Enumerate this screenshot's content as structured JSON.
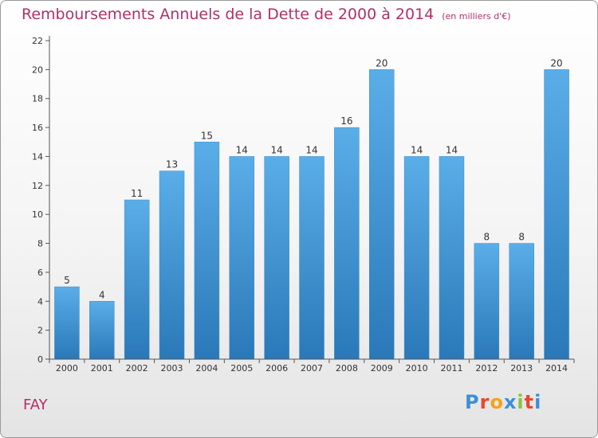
{
  "header": {
    "title": "Remboursements Annuels de la Dette de 2000 à 2014",
    "subtitle": "(en milliers d'€)"
  },
  "footer": {
    "commune": "FAY",
    "logo_text": "Proxiti",
    "logo_colors": [
      "#3c8fd6",
      "#e7472f",
      "#f3a21b",
      "#3c8fd6",
      "#8ac23f",
      "#e7472f",
      "#3c8fd6"
    ]
  },
  "chart_data": {
    "type": "bar",
    "title": "Remboursements Annuels de la Dette de 2000 à 2014",
    "xlabel": "",
    "ylabel": "",
    "categories": [
      "2000",
      "2001",
      "2002",
      "2003",
      "2004",
      "2005",
      "2006",
      "2007",
      "2008",
      "2009",
      "2010",
      "2011",
      "2012",
      "2013",
      "2014"
    ],
    "values": [
      5,
      4,
      11,
      13,
      15,
      14,
      14,
      14,
      16,
      20,
      14,
      14,
      8,
      8,
      20
    ],
    "ylim": [
      0,
      22
    ],
    "yticks": [
      0,
      2,
      4,
      6,
      8,
      10,
      12,
      14,
      16,
      18,
      20,
      22
    ],
    "grid": false,
    "bar_color_top": "#5aaee8",
    "bar_color_bottom": "#2a78b8"
  }
}
